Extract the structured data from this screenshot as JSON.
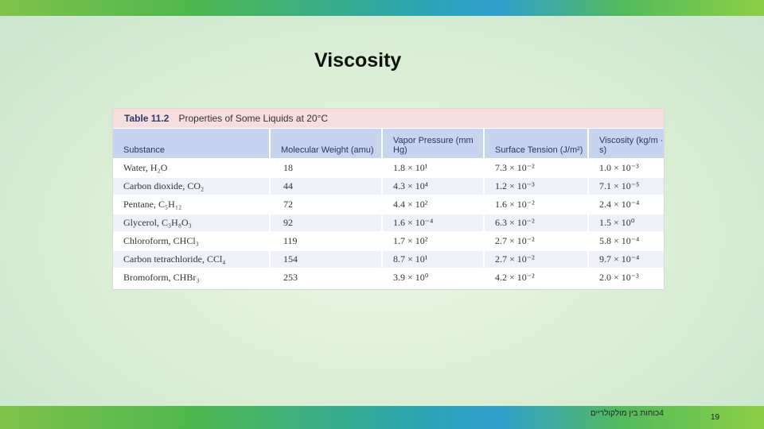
{
  "slide": {
    "title": "Viscosity",
    "footer_text": "4כוחות בין מולקולריים",
    "page_number": "19"
  },
  "table": {
    "caption_number": "Table 11.2",
    "caption_title": "Properties of Some Liquids at 20°C",
    "headers": [
      "Substance",
      "Molecular Weight (amu)",
      "Vapor Pressure (mm Hg)",
      "Surface Tension (J/m²)",
      "Viscosity (kg/m · s)"
    ],
    "rows": [
      [
        "Water, H₂O",
        "18",
        "1.8 × 10¹",
        "7.3 × 10⁻²",
        "1.0 × 10⁻³"
      ],
      [
        "Carbon dioxide, CO₂",
        "44",
        "4.3 × 10⁴",
        "1.2 × 10⁻³",
        "7.1 × 10⁻⁵"
      ],
      [
        "Pentane, C₅H₁₂",
        "72",
        "4.4 × 10²",
        "1.6 × 10⁻²",
        "2.4 × 10⁻⁴"
      ],
      [
        "Glycerol, C₃H₈O₃",
        "92",
        "1.6 × 10⁻⁴",
        "6.3 × 10⁻²",
        "1.5 × 10⁰"
      ],
      [
        "Chloroform, CHCl₃",
        "119",
        "1.7 × 10²",
        "2.7 × 10⁻²",
        "5.8 × 10⁻⁴"
      ],
      [
        "Carbon tetrachloride, CCl₄",
        "154",
        "8.7 × 10¹",
        "2.7 × 10⁻²",
        "9.7 × 10⁻⁴"
      ],
      [
        "Bromoform, CHBr₃",
        "253",
        "3.9 × 10⁰",
        "4.2 × 10⁻²",
        "2.0 × 10⁻³"
      ]
    ]
  }
}
